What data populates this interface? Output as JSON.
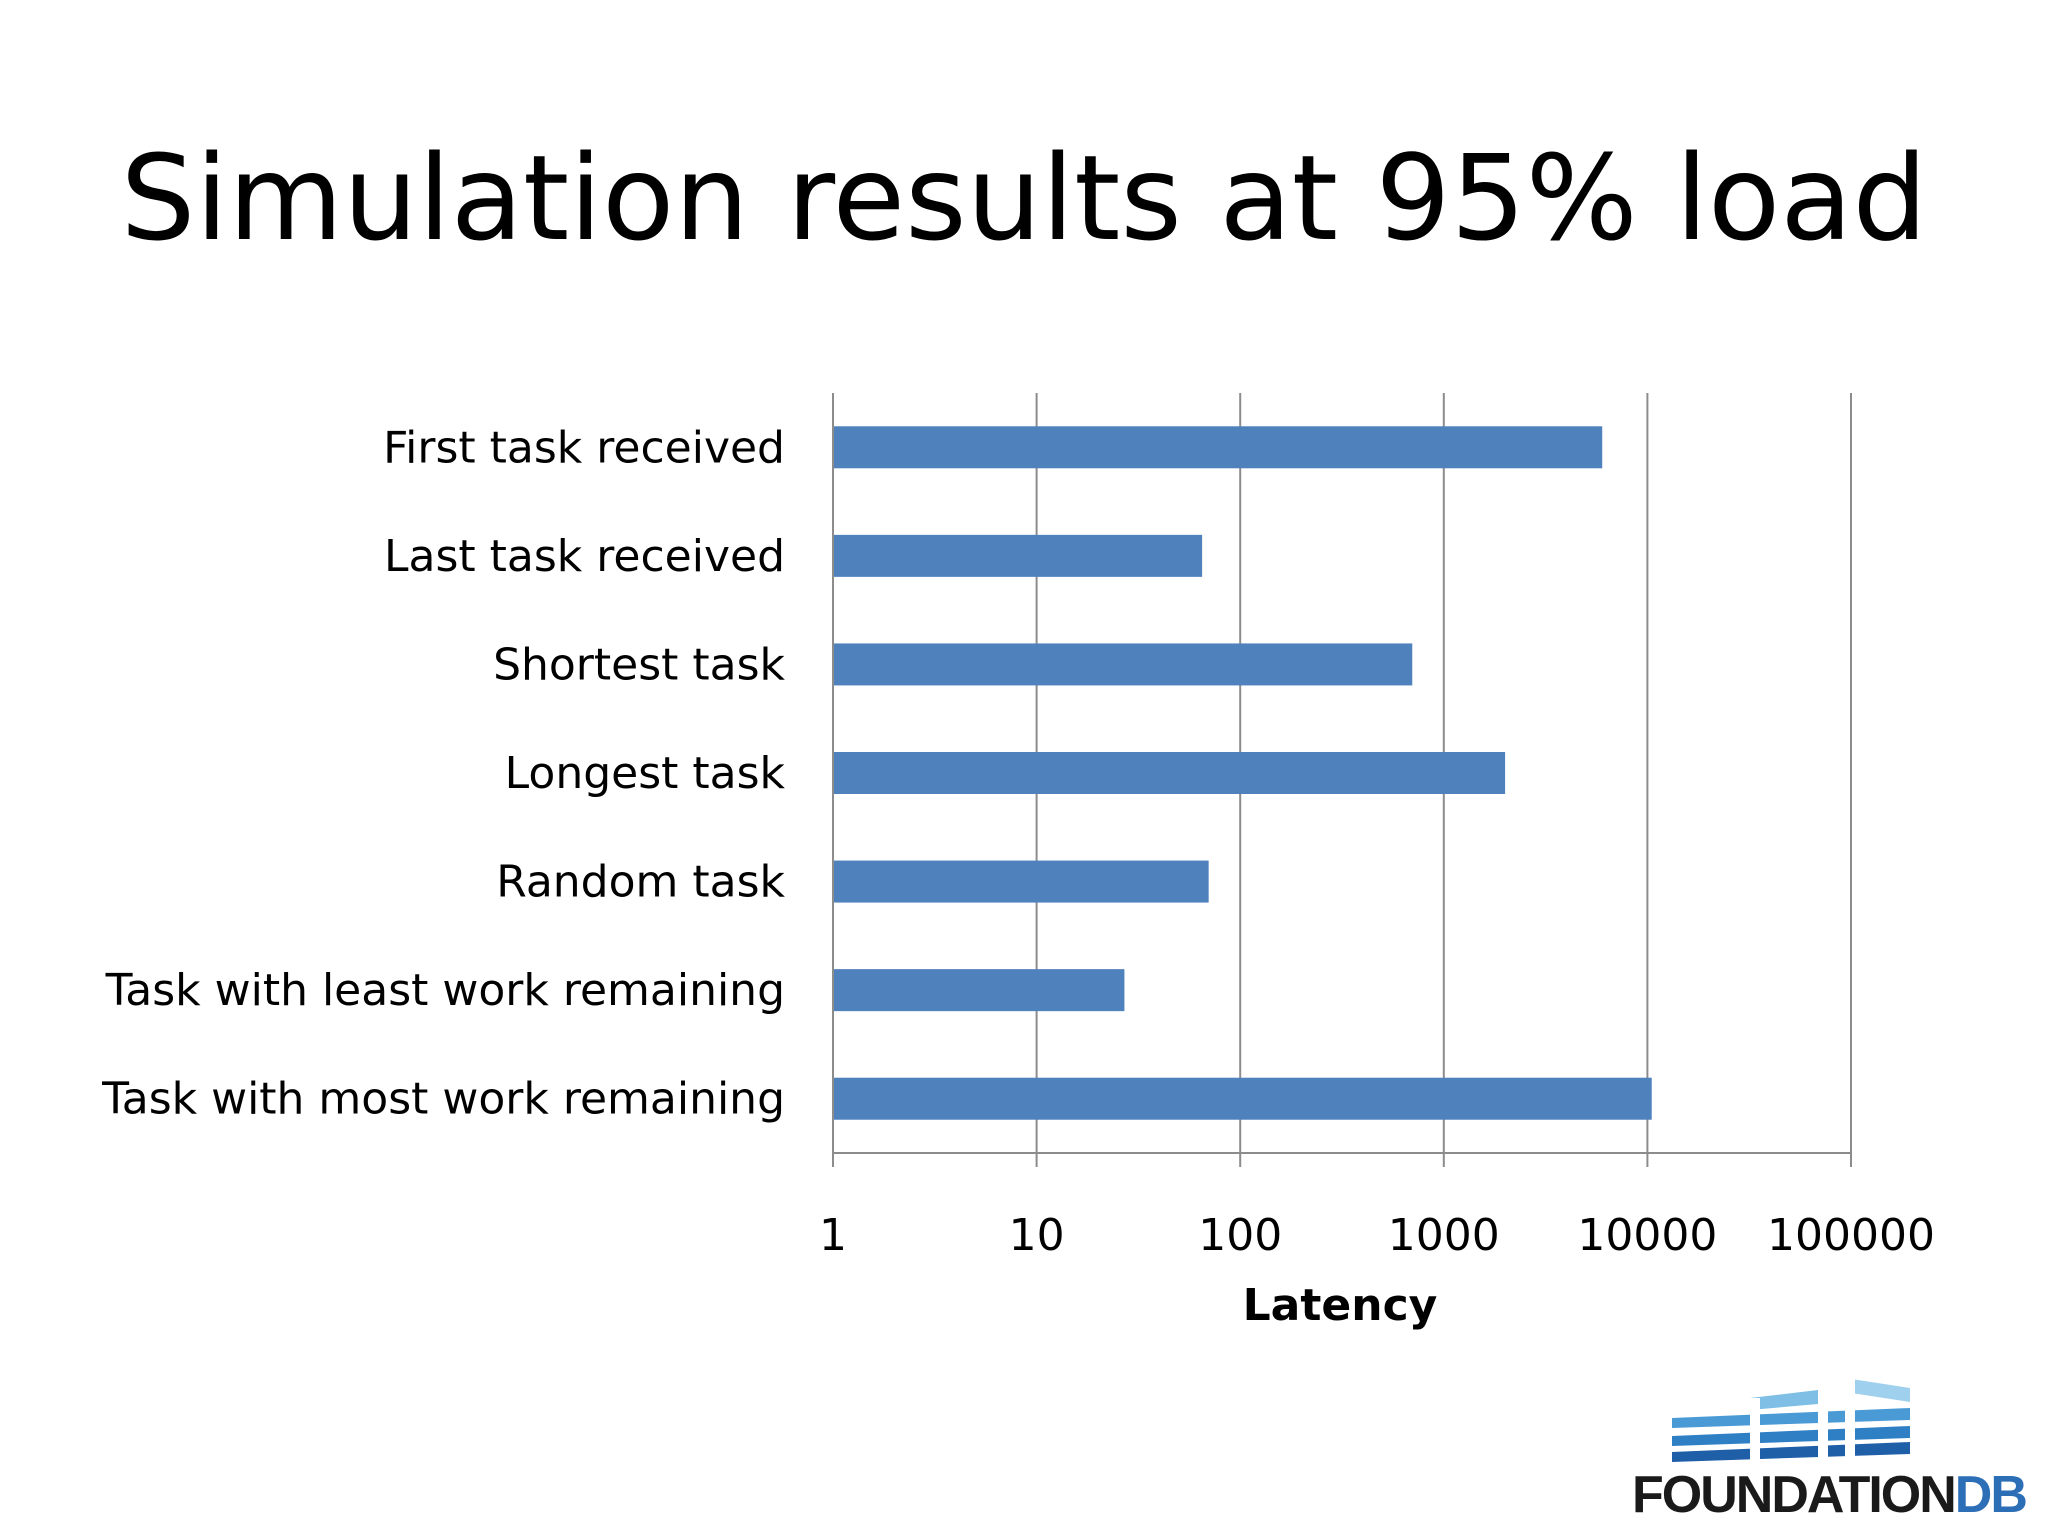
{
  "title": "Simulation results at 95% load",
  "chart_data": {
    "type": "bar",
    "orientation": "horizontal",
    "xscale": "log",
    "xlim": [
      1,
      100000
    ],
    "xticks": [
      "1",
      "10",
      "100",
      "1000",
      "10000",
      "100000"
    ],
    "xlabel": "Latency",
    "ylabel": "",
    "grid": true,
    "legend": "none",
    "bar_color": "#4f81bd",
    "categories": [
      "First task received",
      "Last task received",
      "Shortest task",
      "Longest task",
      "Random task",
      "Task with least work remaining",
      "Task with most work remaining"
    ],
    "values": [
      6000,
      65,
      700,
      2000,
      70,
      27,
      10500
    ]
  },
  "logo": {
    "word_dark": "FOUNDATION",
    "word_blue": "DB",
    "icon": "building-stripes-icon"
  }
}
